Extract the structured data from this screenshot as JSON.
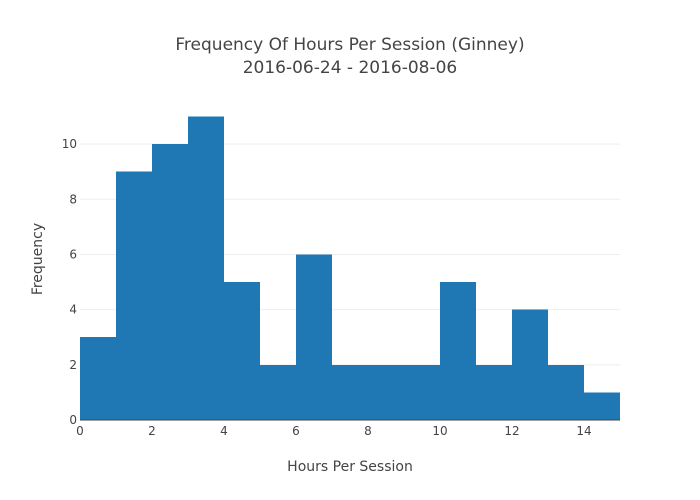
{
  "chart_data": {
    "type": "bar",
    "title_line1": "Frequency Of Hours Per Session (Ginney)",
    "title_line2": "2016-06-24 - 2016-08-06",
    "xlabel": "Hours Per Session",
    "ylabel": "Frequency",
    "xlim": [
      0,
      15
    ],
    "ylim": [
      0,
      11.6
    ],
    "bin_width": 1,
    "bins": [
      {
        "start": 0,
        "end": 1,
        "value": 3
      },
      {
        "start": 1,
        "end": 2,
        "value": 9
      },
      {
        "start": 2,
        "end": 3,
        "value": 10
      },
      {
        "start": 3,
        "end": 4,
        "value": 11
      },
      {
        "start": 4,
        "end": 5,
        "value": 5
      },
      {
        "start": 5,
        "end": 6,
        "value": 2
      },
      {
        "start": 6,
        "end": 7,
        "value": 6
      },
      {
        "start": 7,
        "end": 8,
        "value": 2
      },
      {
        "start": 8,
        "end": 9,
        "value": 2
      },
      {
        "start": 9,
        "end": 10,
        "value": 2
      },
      {
        "start": 10,
        "end": 11,
        "value": 5
      },
      {
        "start": 11,
        "end": 12,
        "value": 2
      },
      {
        "start": 12,
        "end": 13,
        "value": 4
      },
      {
        "start": 13,
        "end": 14,
        "value": 2
      },
      {
        "start": 14,
        "end": 15,
        "value": 1
      }
    ],
    "xticks": [
      "0",
      "2",
      "4",
      "6",
      "8",
      "10",
      "12",
      "14"
    ],
    "yticks": [
      "0",
      "2",
      "4",
      "6",
      "8",
      "10"
    ],
    "grid": true,
    "bar_color": "#1f77b4"
  }
}
